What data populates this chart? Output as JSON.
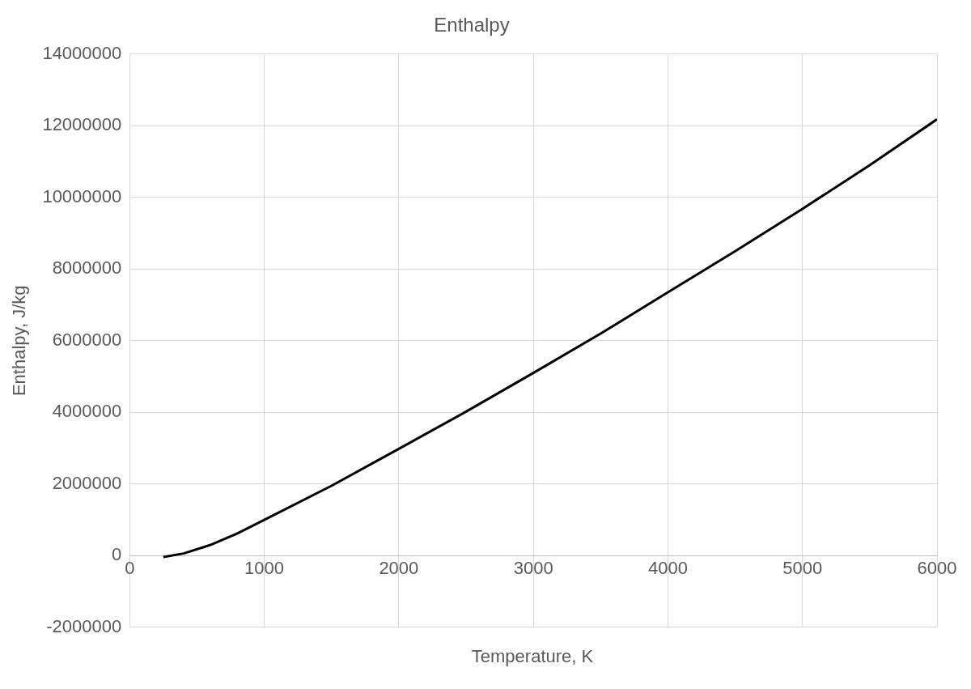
{
  "chart_data": {
    "type": "line",
    "title": "Enthalpy",
    "xlabel": "Temperature, K",
    "ylabel": "Enthalpy, J/kg",
    "x": [
      250,
      400,
      600,
      800,
      1000,
      1500,
      2000,
      2500,
      3000,
      3500,
      4000,
      4500,
      5000,
      5500,
      6000
    ],
    "series": [
      {
        "color": "#000000",
        "values": [
          -40000,
          60000,
          300000,
          620000,
          1000000,
          1950000,
          2980000,
          4020000,
          5100000,
          6200000,
          7350000,
          8500000,
          9680000,
          10900000,
          12180000
        ]
      }
    ],
    "xlim": [
      0,
      6000
    ],
    "xticks": [
      0,
      1000,
      2000,
      3000,
      4000,
      5000,
      6000
    ],
    "ylim": [
      -2000000,
      14000000
    ],
    "yticks": [
      -2000000,
      0,
      2000000,
      4000000,
      6000000,
      8000000,
      10000000,
      12000000,
      14000000
    ],
    "grid": true,
    "legend": false,
    "marker": "none",
    "line_style": "solid"
  }
}
